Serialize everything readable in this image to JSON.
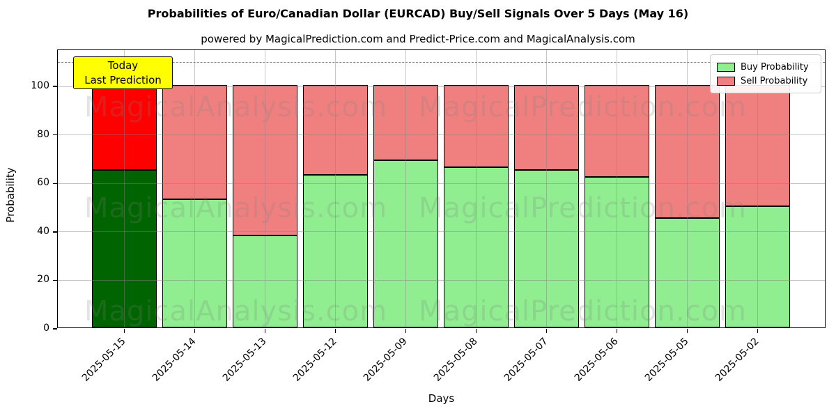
{
  "header": {
    "title": "Probabilities of Euro/Canadian Dollar (EURCAD) Buy/Sell Signals Over 5 Days (May 16)",
    "subtitle": "powered by MagicalPrediction.com and Predict-Price.com and MagicalAnalysis.com"
  },
  "annotation": {
    "line1": "Today",
    "line2": "Last Prediction",
    "bg_color": "#ffff00"
  },
  "watermarks": {
    "left_text": "MagicalAnalysis.com",
    "right_text": "MagicalPrediction.com"
  },
  "chart_data": {
    "type": "bar",
    "stacked": true,
    "title": "Probabilities of Euro/Canadian Dollar (EURCAD) Buy/Sell Signals Over 5 Days (May 16)",
    "xlabel": "Days",
    "ylabel": "Probability",
    "categories": [
      "2025-05-15",
      "2025-05-14",
      "2025-05-13",
      "2025-05-12",
      "2025-05-09",
      "2025-05-08",
      "2025-05-07",
      "2025-05-06",
      "2025-05-05",
      "2025-05-02"
    ],
    "series": [
      {
        "name": "Buy Probability",
        "values": [
          65,
          53,
          38,
          63,
          69,
          66,
          65,
          62,
          45,
          50
        ],
        "color": "#90ee90",
        "today_color": "#006400"
      },
      {
        "name": "Sell Probability",
        "values": [
          35,
          47,
          62,
          37,
          31,
          34,
          35,
          38,
          55,
          50
        ],
        "color": "#f08080",
        "today_color": "#ff0000"
      }
    ],
    "today_category_index": 0,
    "yticks": [
      0,
      20,
      40,
      60,
      80,
      100
    ],
    "ylim": [
      0,
      115
    ],
    "dashed_line_y": 110,
    "grid": true,
    "legend_position": "upper right",
    "bar_edge_color": "#000000"
  }
}
